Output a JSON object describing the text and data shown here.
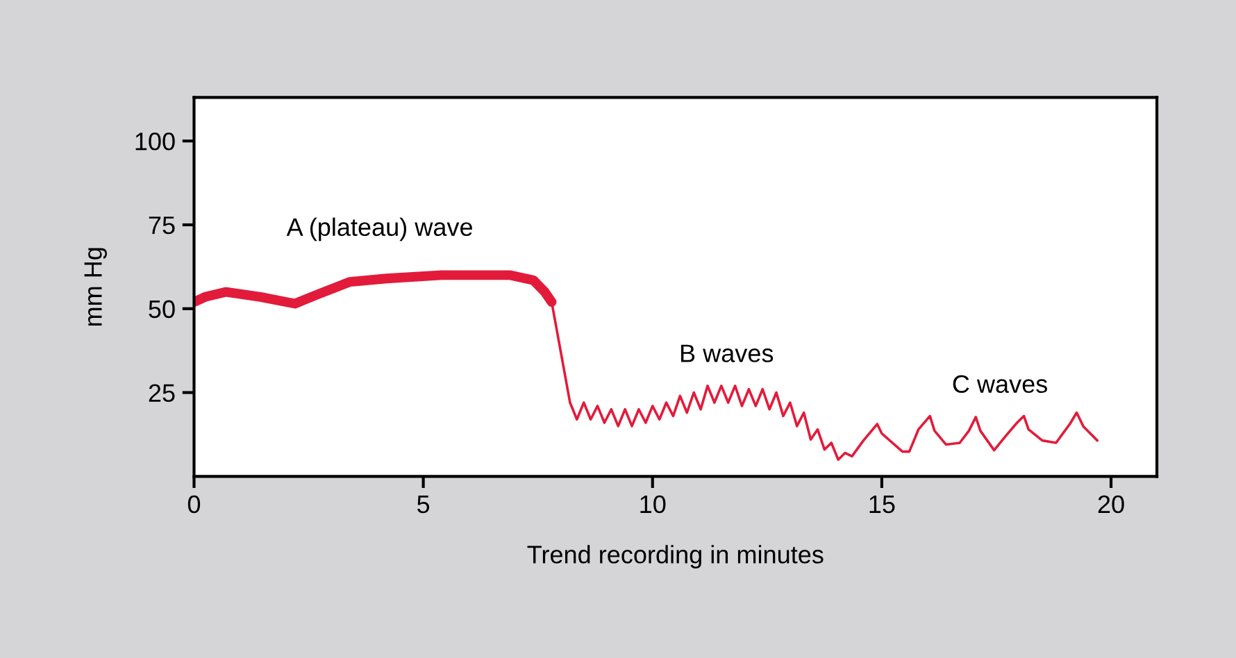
{
  "chart_data": {
    "type": "line",
    "xlabel": "Trend recording in minutes",
    "ylabel": "mm Hg",
    "xlim": [
      0,
      21
    ],
    "ylim": [
      0,
      113
    ],
    "xticks": [
      0,
      5,
      10,
      15,
      20
    ],
    "yticks": [
      25,
      50,
      75,
      100
    ],
    "grid": false,
    "series": [
      {
        "color": "#e31b3b",
        "x": [
          0,
          0.24,
          0.7,
          1.45,
          2.2,
          2.65,
          3.4,
          4.2,
          5.4,
          6.9,
          7.4,
          7.65,
          7.8
        ],
        "values": [
          52,
          53.5,
          55,
          53.5,
          51.5,
          54,
          58,
          59,
          60,
          60,
          58.5,
          55,
          52
        ]
      },
      {
        "color": "#e31b3b",
        "x": [
          7.8,
          8.2,
          8.35,
          8.5,
          8.65,
          8.8,
          8.95,
          9.1,
          9.25,
          9.4,
          9.55,
          9.7,
          9.85,
          10.0,
          10.15,
          10.3,
          10.45,
          10.6,
          10.75,
          10.9,
          11.05,
          11.2,
          11.35,
          11.5,
          11.65,
          11.8,
          11.95,
          12.1,
          12.25,
          12.4,
          12.55,
          12.7,
          12.85,
          13.0,
          13.15,
          13.3,
          13.45,
          13.6,
          13.75,
          13.9,
          14.05,
          14.2,
          14.35,
          14.6,
          14.9,
          15.0,
          15.45,
          15.6,
          15.8,
          16.05,
          16.15,
          16.4,
          16.7,
          16.9,
          17.05,
          17.15,
          17.45,
          17.7,
          17.95,
          18.1,
          18.2,
          18.5,
          18.8,
          19.1,
          19.25,
          19.4,
          19.7
        ],
        "values": [
          52,
          22,
          17,
          22,
          17,
          21,
          16,
          20,
          15,
          20,
          15,
          20,
          16,
          21,
          17,
          22,
          18,
          24,
          19,
          25,
          20,
          27,
          22,
          27,
          22,
          27,
          21,
          26,
          21,
          26,
          20,
          25,
          18,
          22,
          15,
          19,
          11,
          14,
          8,
          10,
          5,
          7,
          6,
          10.7,
          15.6,
          12.8,
          7.4,
          7.4,
          14,
          18,
          13.6,
          9.5,
          10,
          13.6,
          17.7,
          13.6,
          7.8,
          12,
          16,
          18,
          14,
          10.7,
          10,
          15.6,
          19,
          14.8,
          10.7
        ]
      }
    ],
    "annotations": [
      "A (plateau) wave",
      "B waves",
      "C waves"
    ]
  }
}
